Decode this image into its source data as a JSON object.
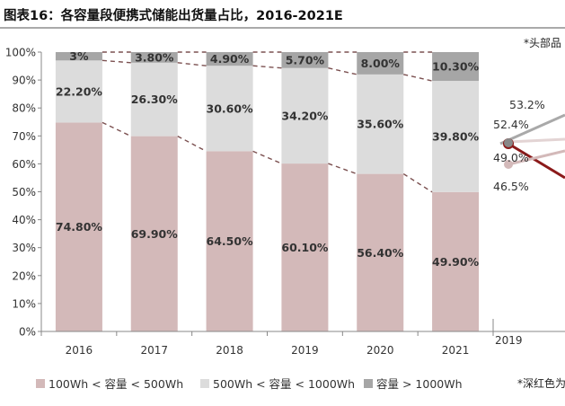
{
  "title": "图表16：各容量段便携式储能出货量占比，2016-2021E",
  "note_top": "*头部品",
  "note_bottom": "*深红色为",
  "colors": {
    "s1": "#d3b9b9",
    "s2": "#dcdcdc",
    "s3": "#a6a6a6",
    "connector": "#7b5050",
    "axis": "#888888"
  },
  "chart_data": {
    "type": "bar",
    "stacked": true,
    "categories": [
      "2016",
      "2017",
      "2018",
      "2019",
      "2020",
      "2021"
    ],
    "series": [
      {
        "name": "100Wh < 容量 < 500Wh",
        "values": [
          74.8,
          69.9,
          64.5,
          60.1,
          56.4,
          49.9
        ],
        "labels": [
          "74.80%",
          "69.90%",
          "64.50%",
          "60.10%",
          "56.40%",
          "49.90%"
        ]
      },
      {
        "name": "500Wh < 容量 < 1000Wh",
        "values": [
          22.2,
          26.3,
          30.6,
          34.2,
          35.6,
          39.8
        ],
        "labels": [
          "22.20%",
          "26.30%",
          "30.60%",
          "34.20%",
          "35.60%",
          "39.80%"
        ]
      },
      {
        "name": "容量 > 1000Wh",
        "values": [
          3,
          3.8,
          4.9,
          5.7,
          8.0,
          10.3
        ],
        "labels": [
          "3%",
          "3.80%",
          "4.90%",
          "5.70%",
          "8.00%",
          "10.30%"
        ]
      }
    ],
    "yticks": [
      "0%",
      "10%",
      "20%",
      "30%",
      "40%",
      "50%",
      "60%",
      "70%",
      "80%",
      "90%",
      "100%"
    ],
    "ylim": [
      0,
      100
    ],
    "grid": false,
    "legend_position": "bottom"
  },
  "side_chart": {
    "type": "line",
    "x_label": "2019",
    "labels": [
      "53.2%",
      "52.4%",
      "49.0%",
      "46.5%"
    ],
    "colors": [
      "#a9a9a9",
      "#8b1a1a",
      "#d3b9b9"
    ]
  }
}
